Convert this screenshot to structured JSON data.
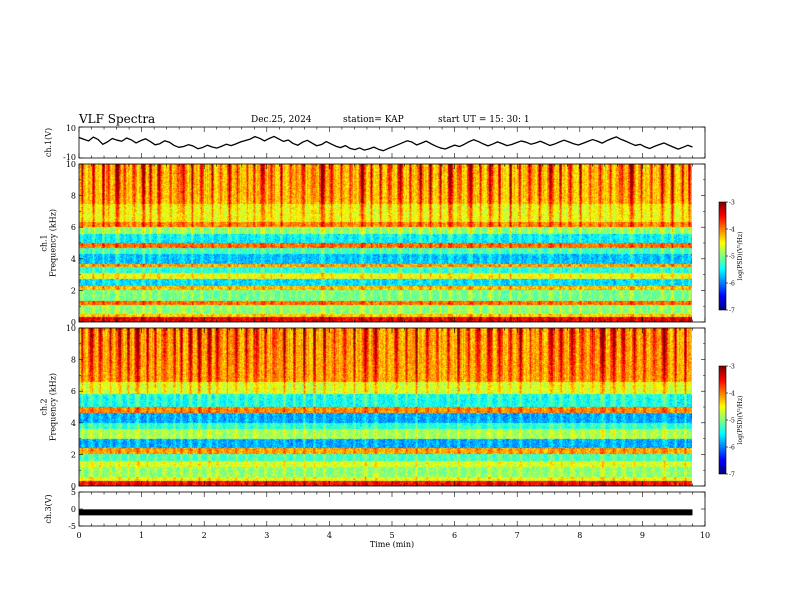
{
  "header": {
    "title": "VLF Spectra",
    "date": "Dec.25, 2024",
    "station": "station= KAP",
    "start": "start  UT  =   15: 30: 1"
  },
  "chart_data": [
    {
      "type": "line",
      "name": "waveform-ch1",
      "ylabel": "ch.1(V)",
      "ylim": [
        -10,
        10
      ],
      "yticks": [
        "10",
        "-10"
      ],
      "xlim": [
        0,
        10
      ],
      "x_end": 9.8,
      "series_color": "#000000",
      "series": [
        {
          "name": "ch.1 amplitude",
          "values": [
            3.2,
            2.1,
            1.0,
            3.5,
            2.0,
            -1.2,
            0.4,
            2.6,
            1.5,
            0.8,
            2.9,
            1.7,
            -0.3,
            1.2,
            2.4,
            0.6,
            -1.5,
            -0.8,
            1.1,
            0.2,
            -1.9,
            -3.1,
            -2.6,
            -1.4,
            -2.3,
            -4.0,
            -3.2,
            -1.8,
            -2.9,
            -3.6,
            -2.4,
            -1.1,
            -2.0,
            -0.9,
            0.4,
            1.3,
            2.2,
            3.8,
            2.7,
            1.0,
            2.6,
            3.9,
            2.3,
            0.7,
            1.6,
            -0.6,
            -1.8,
            0.2,
            1.4,
            -0.4,
            -2.1,
            -1.3,
            0.6,
            -0.9,
            -2.4,
            -3.3,
            -2.0,
            -3.8,
            -4.6,
            -3.5,
            -4.9,
            -4.1,
            -3.0,
            -4.4,
            -5.3,
            -3.9,
            -2.7,
            -1.5,
            -0.2,
            1.1,
            0.3,
            -1.6,
            -0.4,
            0.9,
            -0.8,
            -2.3,
            -3.5,
            -4.2,
            -2.9,
            -1.7,
            -2.6,
            -1.2,
            0.5,
            1.8,
            0.6,
            -0.9,
            -2.2,
            -1.0,
            0.4,
            -0.7,
            -2.0,
            -1.3,
            -0.1,
            1.0,
            0.2,
            -1.1,
            -0.3,
            0.8,
            -0.5,
            -1.9,
            -1.0,
            0.3,
            1.5,
            0.4,
            -0.8,
            -1.6,
            -0.5,
            0.7,
            1.9,
            0.9,
            -0.4,
            1.2,
            2.5,
            3.6,
            2.0,
            0.8,
            -0.6,
            -1.9,
            -1.2,
            -2.8,
            -3.9,
            -2.5,
            -1.4,
            -0.3,
            -1.7,
            -3.0,
            -4.3,
            -3.1,
            -1.8,
            -2.9
          ]
        }
      ]
    },
    {
      "type": "heatmap",
      "name": "spectrogram-ch1",
      "ylabel": "ch.1\nFrequency (kHz)",
      "ylim": [
        0,
        10
      ],
      "yticks": [
        "0",
        "2",
        "4",
        "6",
        "8",
        "10"
      ],
      "xlim": [
        0,
        10
      ],
      "x_end": 9.8,
      "color_scale": {
        "label": "log(PSD)(V²/Hz)",
        "min": -7,
        "max": -3,
        "ticks": [
          "-3",
          "-4",
          "-5",
          "-6",
          "-7"
        ]
      },
      "noise_seed": 7,
      "bands_logpsd": [
        {
          "f0": 0.0,
          "f1": 0.3,
          "v": -3.5
        },
        {
          "f0": 0.3,
          "f1": 0.5,
          "v": -4.4
        },
        {
          "f0": 0.5,
          "f1": 1.1,
          "v": -5.0
        },
        {
          "f0": 1.1,
          "f1": 1.3,
          "v": -4.0
        },
        {
          "f0": 1.3,
          "f1": 2.0,
          "v": -5.1
        },
        {
          "f0": 2.0,
          "f1": 2.3,
          "v": -4.3
        },
        {
          "f0": 2.3,
          "f1": 2.7,
          "v": -5.7
        },
        {
          "f0": 2.7,
          "f1": 3.1,
          "v": -4.6
        },
        {
          "f0": 3.1,
          "f1": 3.5,
          "v": -5.4
        },
        {
          "f0": 3.5,
          "f1": 3.7,
          "v": -4.2
        },
        {
          "f0": 3.7,
          "f1": 4.3,
          "v": -5.8
        },
        {
          "f0": 4.3,
          "f1": 4.7,
          "v": -5.3
        },
        {
          "f0": 4.7,
          "f1": 5.0,
          "v": -4.0
        },
        {
          "f0": 5.0,
          "f1": 5.6,
          "v": -5.6
        },
        {
          "f0": 5.6,
          "f1": 6.0,
          "v": -5.0
        },
        {
          "f0": 6.0,
          "f1": 6.3,
          "v": -4.1
        },
        {
          "f0": 6.3,
          "f1": 7.5,
          "v": -4.6
        },
        {
          "f0": 7.5,
          "f1": 10.0,
          "v": -4.3
        }
      ],
      "burst_columns_min": [
        0.05,
        0.22,
        0.38,
        0.47,
        0.61,
        0.72,
        0.88,
        1.03,
        1.14,
        1.27,
        1.45,
        1.58,
        1.66,
        1.81,
        1.95,
        2.12,
        2.26,
        2.4,
        2.53,
        2.68,
        2.79,
        2.93,
        3.06,
        3.22,
        3.37,
        3.46,
        3.58,
        3.74,
        3.88,
        4.02,
        4.19,
        4.33,
        4.52,
        4.67,
        4.81,
        4.96,
        5.12,
        5.28,
        5.45,
        5.61,
        5.76,
        5.92,
        6.07,
        6.24,
        6.4,
        6.57,
        6.71,
        6.88,
        7.03,
        7.19,
        7.35,
        7.52,
        7.68,
        7.84,
        8.01,
        8.17,
        8.33,
        8.49,
        8.66,
        8.82,
        8.98,
        9.14,
        9.31,
        9.47,
        9.63,
        9.75
      ]
    },
    {
      "type": "heatmap",
      "name": "spectrogram-ch2",
      "ylabel": "ch.2\nFrequency (kHz)",
      "ylim": [
        0,
        10
      ],
      "yticks": [
        "0",
        "2",
        "4",
        "6",
        "8",
        "10"
      ],
      "xlim": [
        0,
        10
      ],
      "x_end": 9.8,
      "color_scale": {
        "label": "log(PSD)(V²/Hz)",
        "min": -7,
        "max": -3,
        "ticks": [
          "-3",
          "-4",
          "-5",
          "-6",
          "-7"
        ]
      },
      "noise_seed": 19,
      "bands_logpsd": [
        {
          "f0": 0.0,
          "f1": 0.3,
          "v": -3.6
        },
        {
          "f0": 0.3,
          "f1": 0.6,
          "v": -4.6
        },
        {
          "f0": 0.6,
          "f1": 1.2,
          "v": -5.0
        },
        {
          "f0": 1.2,
          "f1": 1.6,
          "v": -4.7
        },
        {
          "f0": 1.6,
          "f1": 2.0,
          "v": -5.3
        },
        {
          "f0": 2.0,
          "f1": 2.4,
          "v": -4.2
        },
        {
          "f0": 2.4,
          "f1": 3.0,
          "v": -5.9
        },
        {
          "f0": 3.0,
          "f1": 3.6,
          "v": -4.9
        },
        {
          "f0": 3.6,
          "f1": 4.0,
          "v": -5.4
        },
        {
          "f0": 4.0,
          "f1": 4.6,
          "v": -5.9
        },
        {
          "f0": 4.6,
          "f1": 5.0,
          "v": -4.1
        },
        {
          "f0": 5.0,
          "f1": 5.8,
          "v": -5.5
        },
        {
          "f0": 5.8,
          "f1": 6.6,
          "v": -4.7
        },
        {
          "f0": 6.6,
          "f1": 10.0,
          "v": -4.2
        }
      ],
      "burst_columns_min": [
        0.04,
        0.19,
        0.33,
        0.5,
        0.64,
        0.79,
        0.92,
        1.08,
        1.21,
        1.36,
        1.52,
        1.63,
        1.78,
        1.92,
        2.07,
        2.21,
        2.36,
        2.51,
        2.66,
        2.82,
        2.97,
        3.12,
        3.28,
        3.43,
        3.59,
        3.75,
        3.91,
        4.08,
        4.24,
        4.4,
        4.57,
        4.73,
        4.9,
        5.06,
        5.23,
        5.39,
        5.56,
        5.72,
        5.89,
        6.05,
        6.22,
        6.38,
        6.55,
        6.71,
        6.88,
        7.04,
        7.21,
        7.37,
        7.54,
        7.7,
        7.87,
        8.03,
        8.2,
        8.36,
        8.53,
        8.69,
        8.86,
        9.02,
        9.19,
        9.35,
        9.52,
        9.68
      ]
    },
    {
      "type": "line",
      "name": "waveform-ch3",
      "ylabel": "ch.3(V)",
      "ylim": [
        -5,
        5
      ],
      "yticks": [
        "5",
        "0",
        "-5"
      ],
      "xlim": [
        0,
        10
      ],
      "x_end": 9.8,
      "series_color": "#000000",
      "series": [
        {
          "name": "ch.3 level",
          "values": [
            -1.0,
            -1.0
          ]
        }
      ]
    }
  ],
  "x_axis": {
    "label": "Time (min)",
    "ticks": [
      "0",
      "1",
      "2",
      "3",
      "4",
      "5",
      "6",
      "7",
      "8",
      "9",
      "10"
    ]
  }
}
